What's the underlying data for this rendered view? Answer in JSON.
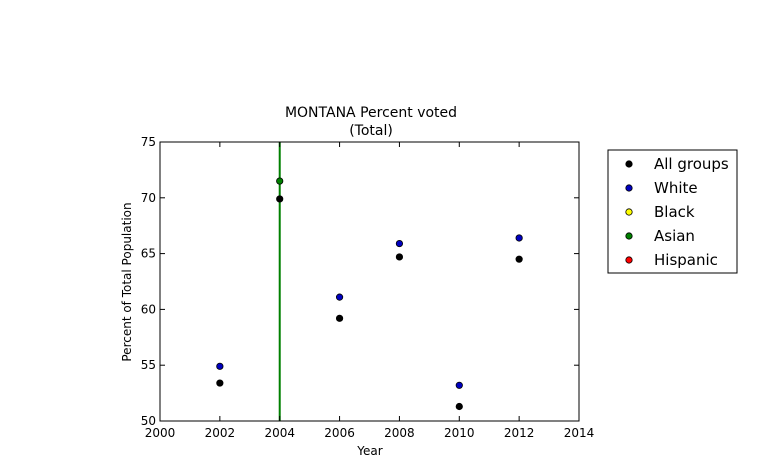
{
  "chart_data": {
    "type": "scatter",
    "title": "MONTANA Percent voted",
    "subtitle": "(Total)",
    "xlabel": "Year",
    "ylabel": "Percent of Total Population",
    "xlim": [
      2000,
      2014
    ],
    "ylim": [
      50,
      75
    ],
    "xticks": [
      2000,
      2002,
      2004,
      2006,
      2008,
      2010,
      2012,
      2014
    ],
    "yticks": [
      50,
      55,
      60,
      65,
      70,
      75
    ],
    "grid": false,
    "legend_position": "outside-right",
    "vertical_line": {
      "x": 2004,
      "color": "#008000"
    },
    "series": [
      {
        "name": "All groups",
        "color": "#000000",
        "x": [
          2002,
          2004,
          2006,
          2008,
          2010,
          2012
        ],
        "y": [
          53.4,
          69.9,
          59.2,
          64.7,
          51.3,
          64.5
        ]
      },
      {
        "name": "White",
        "color": "#0000bf",
        "x": [
          2002,
          2006,
          2008,
          2010,
          2012
        ],
        "y": [
          54.9,
          61.1,
          65.9,
          53.2,
          66.4
        ]
      },
      {
        "name": "Black",
        "color": "#ffff00",
        "x": [],
        "y": []
      },
      {
        "name": "Asian",
        "color": "#008000",
        "x": [
          2004
        ],
        "y": [
          71.5
        ]
      },
      {
        "name": "Hispanic",
        "color": "#ff0000",
        "x": [],
        "y": []
      }
    ]
  }
}
